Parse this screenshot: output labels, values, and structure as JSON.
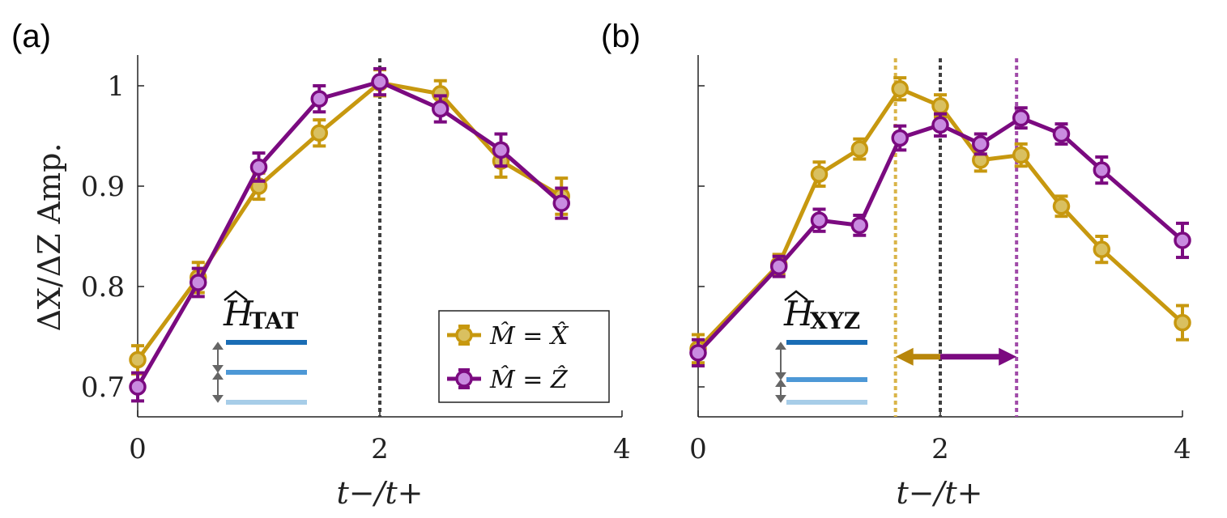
{
  "chart_data": [
    {
      "panel_label": "(a)",
      "type": "line",
      "xlabel": "t−/t+",
      "ylabel": "ΔX/ΔZ Amp.",
      "xlim": [
        0,
        4
      ],
      "ylim": [
        0.67,
        1.03
      ],
      "xticks": [
        0,
        2,
        4
      ],
      "yticks": [
        0.7,
        0.8,
        0.9,
        1
      ],
      "ytick_labels": [
        "0.7",
        "0.8",
        "0.9",
        "1"
      ],
      "hamiltonian_base": "H",
      "hamiltonian_sub": "TAT",
      "vlines": [
        {
          "x": 2,
          "color": "#404040"
        }
      ],
      "legend": {
        "position": "bottom-right",
        "entries": [
          "M̂ = X̂",
          "M̂ = Ẑ"
        ]
      },
      "series": [
        {
          "name": "M̂ = X̂",
          "color": "#c7980f",
          "fill": "#d9c060",
          "x": [
            0,
            0.5,
            1,
            1.5,
            2,
            2.5,
            3,
            3.5
          ],
          "y": [
            0.727,
            0.809,
            0.9,
            0.953,
            1.003,
            0.992,
            0.925,
            0.89
          ],
          "err": [
            0.014,
            0.015,
            0.013,
            0.013,
            0.013,
            0.013,
            0.016,
            0.018
          ]
        },
        {
          "name": "M̂ = Ẑ",
          "color": "#7b0a80",
          "fill": "#c98be0",
          "x": [
            0,
            0.5,
            1,
            1.5,
            2,
            2.5,
            3,
            3.5
          ],
          "y": [
            0.7,
            0.804,
            0.919,
            0.987,
            1.004,
            0.977,
            0.936,
            0.883
          ],
          "err": [
            0.014,
            0.014,
            0.014,
            0.013,
            0.013,
            0.013,
            0.016,
            0.015
          ]
        }
      ]
    },
    {
      "panel_label": "(b)",
      "type": "line",
      "xlabel": "t−/t+",
      "xlim": [
        0,
        4
      ],
      "ylim": [
        0.67,
        1.03
      ],
      "xticks": [
        0,
        2,
        4
      ],
      "yticks": [
        0.7,
        0.8,
        0.9,
        1
      ],
      "hamiltonian_base": "H",
      "hamiltonian_sub": "XYZ",
      "vlines": [
        {
          "x": 1.63,
          "color": "#d9b448"
        },
        {
          "x": 2,
          "color": "#404040"
        },
        {
          "x": 2.63,
          "color": "#a04aa8"
        }
      ],
      "arrows": [
        {
          "from": 2,
          "to": 1.63,
          "y": 0.73,
          "color": "#b8860b"
        },
        {
          "from": 2,
          "to": 2.63,
          "y": 0.73,
          "color": "#7b0a80"
        }
      ],
      "series": [
        {
          "name": "M̂ = X̂",
          "color": "#c7980f",
          "fill": "#d9c060",
          "x": [
            0,
            0.667,
            1,
            1.333,
            1.667,
            2,
            2.333,
            2.667,
            3,
            3.333,
            4
          ],
          "y": [
            0.738,
            0.822,
            0.912,
            0.937,
            0.997,
            0.98,
            0.926,
            0.931,
            0.88,
            0.837,
            0.764
          ],
          "err": [
            0.014,
            0.01,
            0.012,
            0.01,
            0.011,
            0.011,
            0.011,
            0.011,
            0.01,
            0.013,
            0.017
          ]
        },
        {
          "name": "M̂ = Ẑ",
          "color": "#7b0a80",
          "fill": "#c98be0",
          "x": [
            0,
            0.667,
            1,
            1.333,
            1.667,
            2,
            2.333,
            2.667,
            3,
            3.333,
            4
          ],
          "y": [
            0.734,
            0.82,
            0.866,
            0.861,
            0.948,
            0.961,
            0.942,
            0.968,
            0.952,
            0.916,
            0.846
          ],
          "err": [
            0.013,
            0.01,
            0.011,
            0.01,
            0.012,
            0.011,
            0.01,
            0.01,
            0.01,
            0.013,
            0.017
          ]
        }
      ]
    }
  ]
}
